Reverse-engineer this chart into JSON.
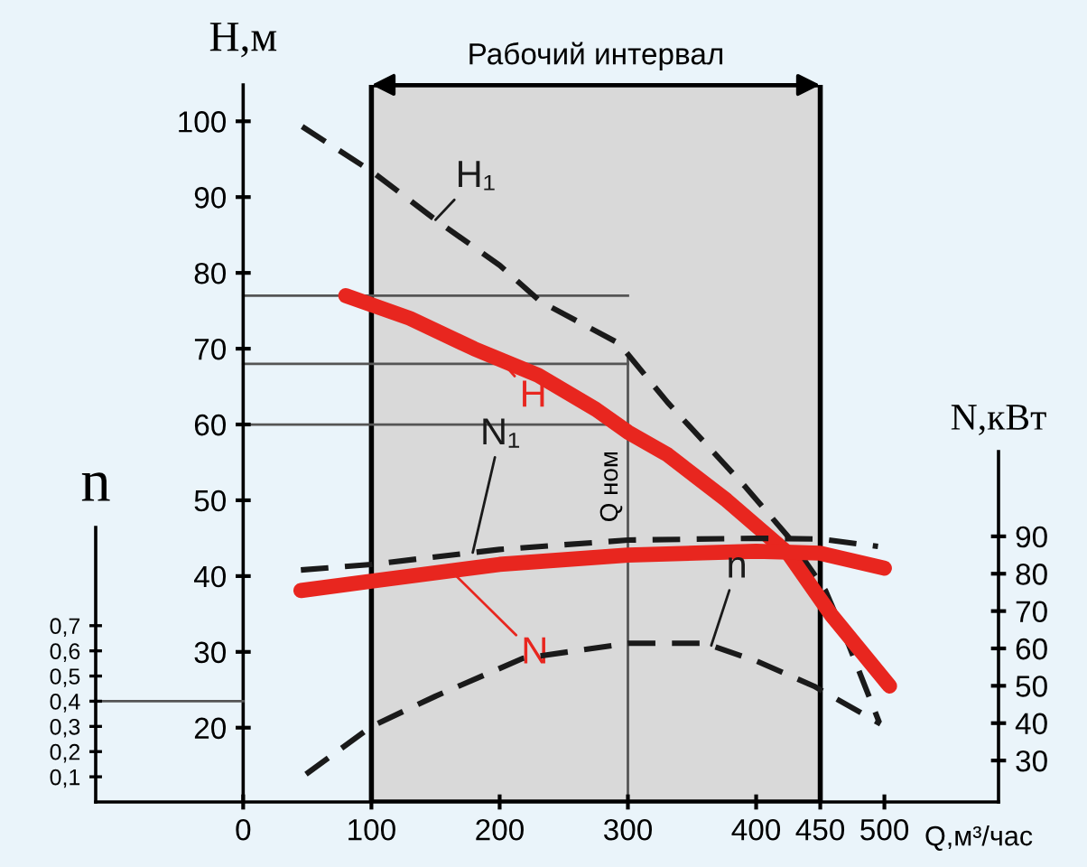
{
  "chart_data": {
    "type": "line",
    "xlabel": "Q,м³/час",
    "ylabel": "H,м",
    "y2label": "N,кВт",
    "y3label": "n",
    "xlim": [
      -115,
      589
    ],
    "xticks": [
      0,
      100,
      200,
      300,
      400,
      450,
      500
    ],
    "ylim": [
      10.2,
      104.8
    ],
    "yticks": [
      20,
      30,
      40,
      50,
      60,
      70,
      80,
      90,
      100
    ],
    "y2lim": [
      18.9,
      112.7
    ],
    "y2ticks": [
      30,
      40,
      50,
      60,
      70,
      80,
      90
    ],
    "y3lim": [
      0,
      1.09
    ],
    "y3ticks": [
      {
        "value": 0.1,
        "label": "0,1"
      },
      {
        "value": 0.2,
        "label": "0,2"
      },
      {
        "value": 0.3,
        "label": "0,3"
      },
      {
        "value": 0.4,
        "label": "0,4"
      },
      {
        "value": 0.5,
        "label": "0,5"
      },
      {
        "value": 0.6,
        "label": "0,6"
      },
      {
        "value": 0.7,
        "label": "0,7"
      }
    ],
    "series": [
      {
        "name": "H₁",
        "color": "#1a1a1a",
        "line_style": "dashed",
        "axis": "y",
        "x": [
          46,
          101,
          150,
          200,
          232,
          293,
          331,
          392,
          425,
          454,
          472,
          496
        ],
        "values": [
          99.3,
          93.3,
          87,
          81,
          76.2,
          70.7,
          62.9,
          51.7,
          45.2,
          38.1,
          31,
          20.7
        ]
      },
      {
        "name": "H",
        "color": "#e8261f",
        "line_style": "solid",
        "axis": "y",
        "x": [
          80,
          130,
          180,
          230,
          275,
          300,
          331,
          377,
          425,
          458,
          504
        ],
        "values": [
          77,
          74,
          70,
          66.5,
          62,
          59,
          56,
          50,
          43,
          35,
          25.5
        ]
      },
      {
        "name": "N₁",
        "color": "#1a1a1a",
        "line_style": "dashed",
        "axis": "y2",
        "x": [
          45,
          100,
          200,
          300,
          400,
          450,
          495
        ],
        "values": [
          81,
          82.5,
          86.5,
          89,
          89.5,
          89.3,
          87.3
        ]
      },
      {
        "name": "N",
        "color": "#e8261f",
        "line_style": "solid",
        "axis": "y2",
        "x": [
          45,
          100,
          200,
          300,
          400,
          450,
          500
        ],
        "values": [
          75.5,
          78,
          82.5,
          85,
          86,
          85.5,
          81.5
        ]
      },
      {
        "name": "n",
        "color": "#1a1a1a",
        "line_style": "dashed",
        "axis": "y3",
        "x": [
          49,
          100,
          150,
          218,
          300,
          360,
          400,
          445,
          497
        ],
        "values": [
          0.11,
          0.3,
          0.42,
          0.57,
          0.63,
          0.63,
          0.56,
          0.46,
          0.31
        ]
      }
    ],
    "bands": [
      {
        "axis": "x",
        "from": 100,
        "to": 450,
        "label": "Рабочий интервал",
        "color": "#d9d9d9"
      }
    ],
    "ref_lines": [
      {
        "axis": "x",
        "value": 300,
        "label": "Q ном"
      },
      {
        "axis": "y",
        "value": 77
      },
      {
        "axis": "y",
        "value": 68
      },
      {
        "axis": "y",
        "value": 60
      },
      {
        "axis": "y3",
        "value": 0.4
      }
    ],
    "grid": false
  }
}
